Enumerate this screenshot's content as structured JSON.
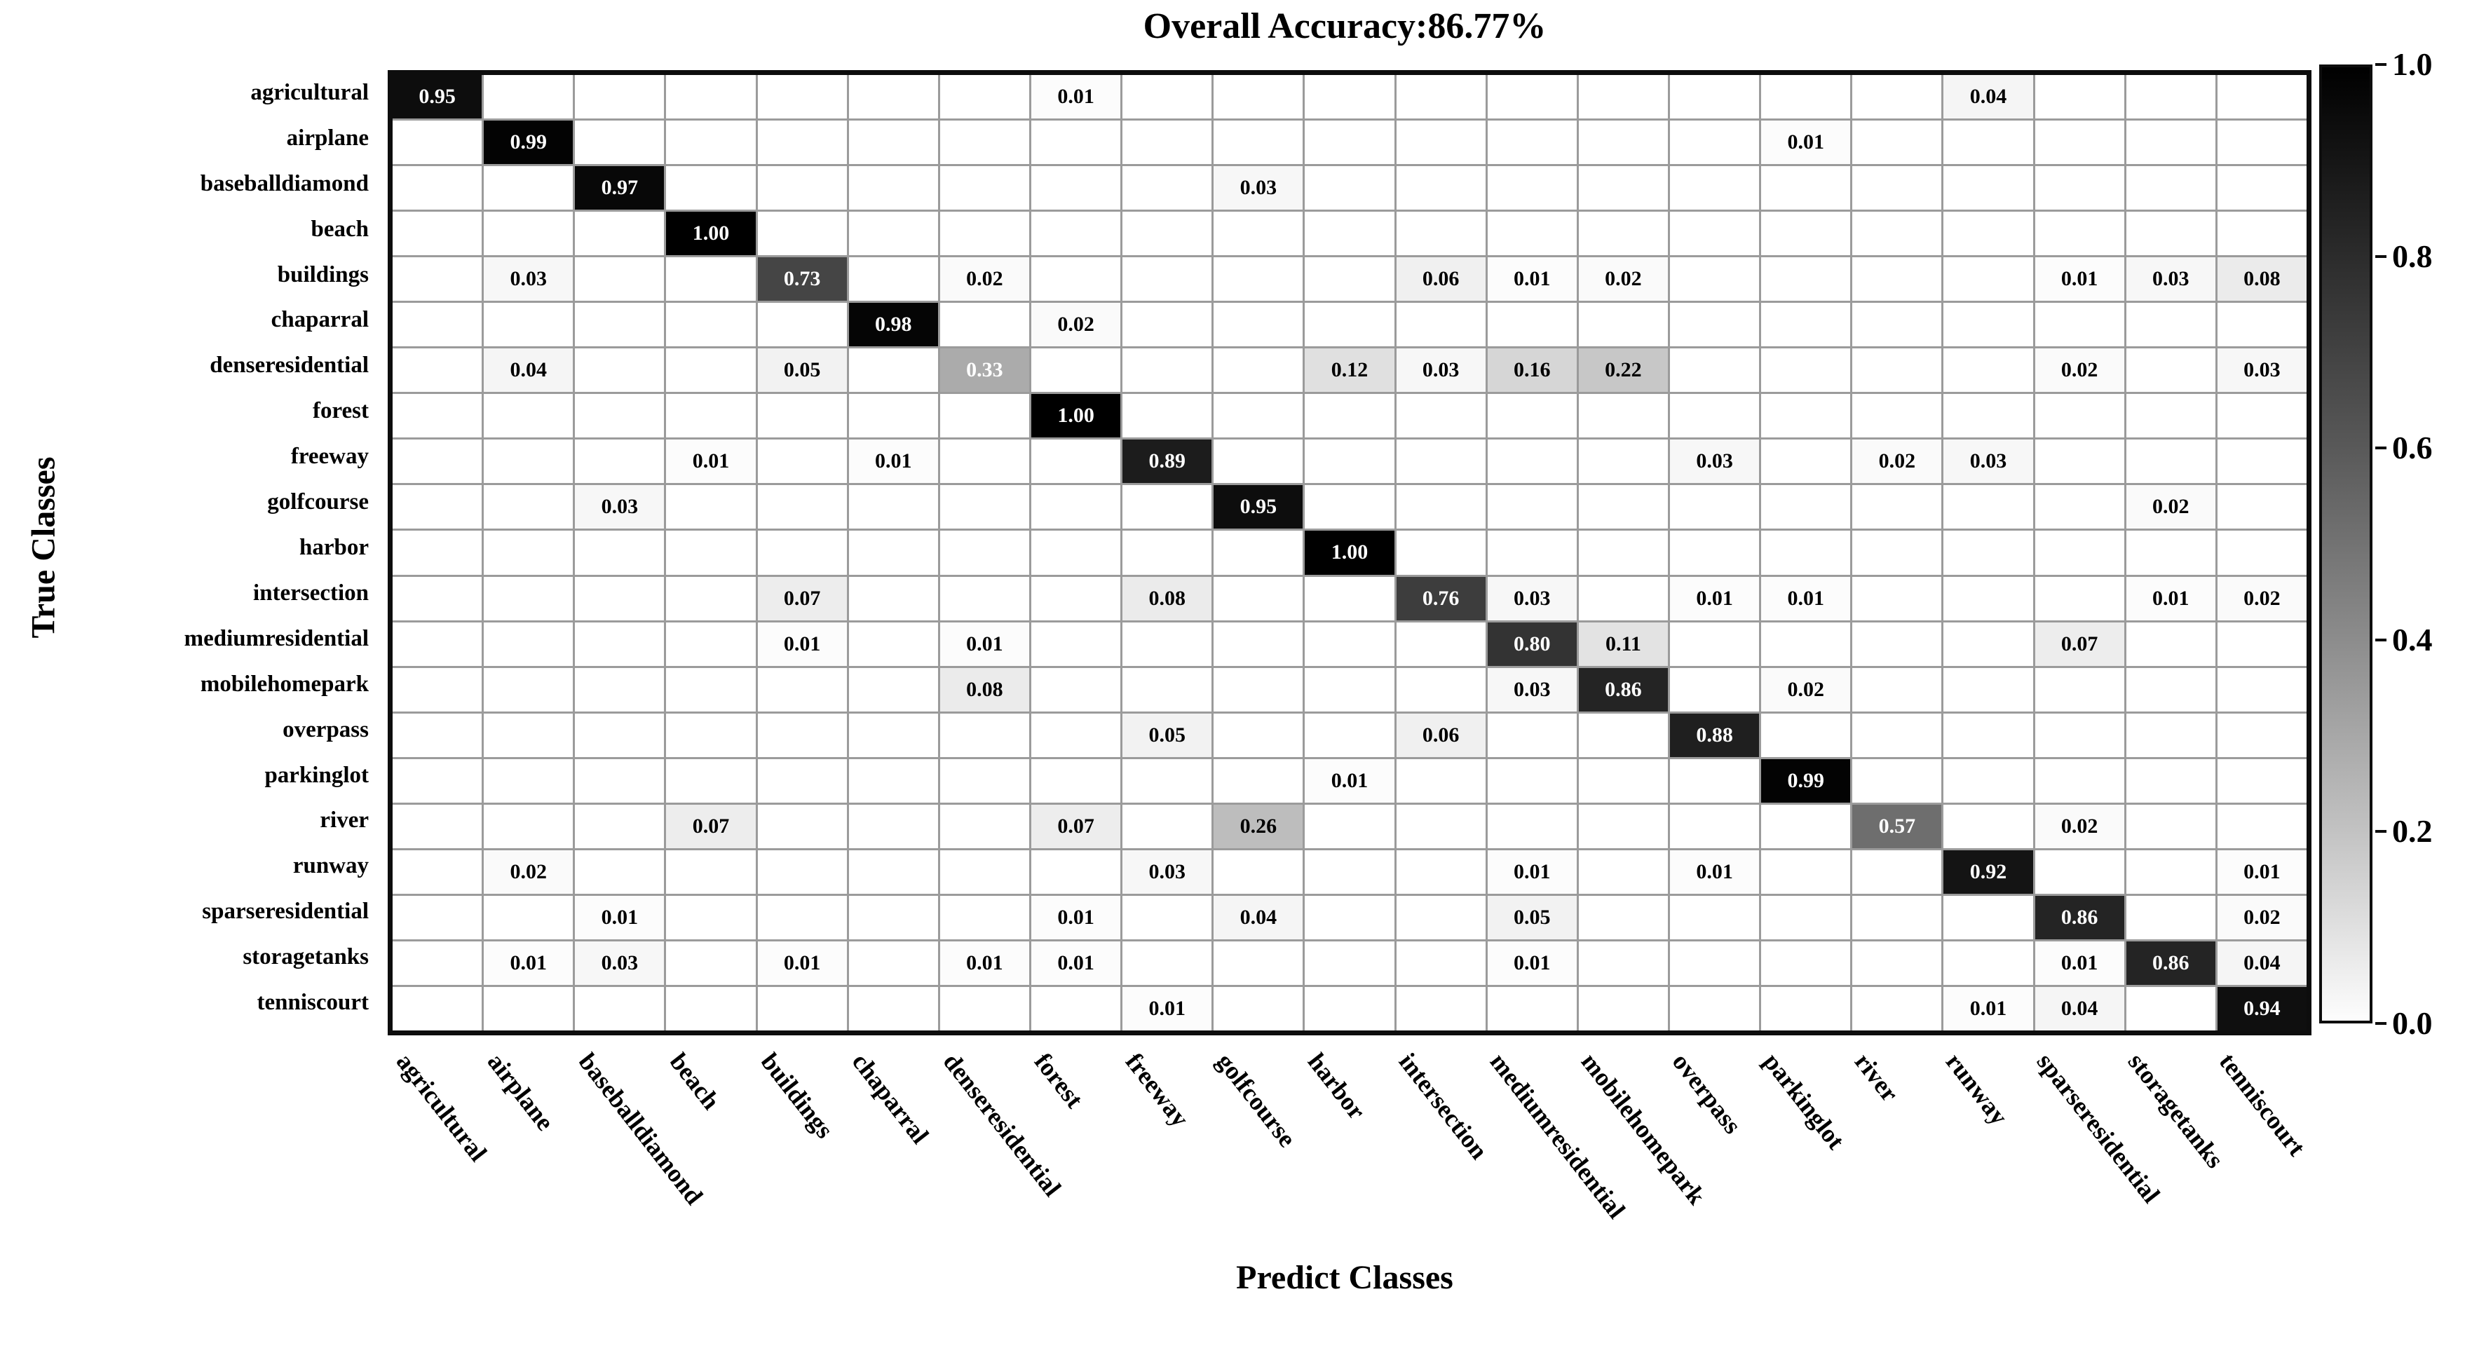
{
  "title": "Overall Accuracy:86.77%",
  "x_axis_title": "Predict Classes",
  "y_axis_title": "True Classes",
  "colorbar": {
    "tick_labels": [
      "1.0",
      "0.8",
      "0.6",
      "0.4",
      "0.2",
      "0.0"
    ],
    "top_value": 1.0,
    "bottom_value": 0.0,
    "color_high": "#000000",
    "color_low": "#ffffff"
  },
  "chart_data": {
    "type": "heatmap",
    "title": "Overall Accuracy:86.77%",
    "xlabel": "Predict Classes",
    "ylabel": "True Classes",
    "colormap": "grayscale reversed (0=white, 1=black)",
    "value_range": [
      0.0,
      1.0
    ],
    "legend_position": "right colorbar",
    "classes": [
      "agricultural",
      "airplane",
      "baseballdiamond",
      "beach",
      "buildings",
      "chaparral",
      "denseresidential",
      "forest",
      "freeway",
      "golfcourse",
      "harbor",
      "intersection",
      "mediumresidential",
      "mobilehomepark",
      "overpass",
      "parkinglot",
      "river",
      "runway",
      "sparseresidential",
      "storagetanks",
      "tenniscourt"
    ],
    "matrix": [
      [
        0.95,
        0,
        0,
        0,
        0,
        0,
        0,
        0.01,
        0,
        0,
        0,
        0,
        0,
        0,
        0,
        0,
        0,
        0.04,
        0,
        0,
        0
      ],
      [
        0,
        0.99,
        0,
        0,
        0,
        0,
        0,
        0,
        0,
        0,
        0,
        0,
        0,
        0,
        0,
        0.01,
        0,
        0,
        0,
        0,
        0
      ],
      [
        0,
        0,
        0.97,
        0,
        0,
        0,
        0,
        0,
        0,
        0.03,
        0,
        0,
        0,
        0,
        0,
        0,
        0,
        0,
        0,
        0,
        0
      ],
      [
        0,
        0,
        0,
        1.0,
        0,
        0,
        0,
        0,
        0,
        0,
        0,
        0,
        0,
        0,
        0,
        0,
        0,
        0,
        0,
        0,
        0
      ],
      [
        0,
        0.03,
        0,
        0,
        0.73,
        0,
        0.02,
        0,
        0,
        0,
        0,
        0.06,
        0.01,
        0.02,
        0,
        0,
        0,
        0,
        0.01,
        0.03,
        0.08
      ],
      [
        0,
        0,
        0,
        0,
        0,
        0.98,
        0,
        0.02,
        0,
        0,
        0,
        0,
        0,
        0,
        0,
        0,
        0,
        0,
        0,
        0,
        0
      ],
      [
        0,
        0.04,
        0,
        0,
        0.05,
        0,
        0.33,
        0,
        0,
        0,
        0.12,
        0.03,
        0.16,
        0.22,
        0,
        0,
        0,
        0,
        0.02,
        0,
        0.03
      ],
      [
        0,
        0,
        0,
        0,
        0,
        0,
        0,
        1.0,
        0,
        0,
        0,
        0,
        0,
        0,
        0,
        0,
        0,
        0,
        0,
        0,
        0
      ],
      [
        0,
        0,
        0,
        0.01,
        0,
        0.01,
        0,
        0,
        0.89,
        0,
        0,
        0,
        0,
        0,
        0.03,
        0,
        0.02,
        0.03,
        0,
        0,
        0
      ],
      [
        0,
        0,
        0.03,
        0,
        0,
        0,
        0,
        0,
        0,
        0.95,
        0,
        0,
        0,
        0,
        0,
        0,
        0,
        0,
        0,
        0.02,
        0
      ],
      [
        0,
        0,
        0,
        0,
        0,
        0,
        0,
        0,
        0,
        0,
        1.0,
        0,
        0,
        0,
        0,
        0,
        0,
        0,
        0,
        0,
        0
      ],
      [
        0,
        0,
        0,
        0,
        0.07,
        0,
        0,
        0,
        0.08,
        0,
        0,
        0.76,
        0.03,
        0,
        0.01,
        0.01,
        0,
        0,
        0,
        0.01,
        0.02
      ],
      [
        0,
        0,
        0,
        0,
        0.01,
        0,
        0.01,
        0,
        0,
        0,
        0,
        0,
        0.8,
        0.11,
        0,
        0,
        0,
        0,
        0.07,
        0,
        0
      ],
      [
        0,
        0,
        0,
        0,
        0,
        0,
        0.08,
        0,
        0,
        0,
        0,
        0,
        0.03,
        0.86,
        0,
        0.02,
        0,
        0,
        0,
        0,
        0
      ],
      [
        0,
        0,
        0,
        0,
        0,
        0,
        0,
        0,
        0.05,
        0,
        0,
        0.06,
        0,
        0,
        0.88,
        0,
        0,
        0,
        0,
        0,
        0
      ],
      [
        0,
        0,
        0,
        0,
        0,
        0,
        0,
        0,
        0,
        0,
        0.01,
        0,
        0,
        0,
        0,
        0.99,
        0,
        0,
        0,
        0,
        0
      ],
      [
        0,
        0,
        0,
        0.07,
        0,
        0,
        0,
        0.07,
        0,
        0.26,
        0,
        0,
        0,
        0,
        0,
        0,
        0.57,
        0,
        0.02,
        0,
        0
      ],
      [
        0,
        0.02,
        0,
        0,
        0,
        0,
        0,
        0,
        0.03,
        0,
        0,
        0,
        0.01,
        0,
        0.01,
        0,
        0,
        0.92,
        0,
        0,
        0.01
      ],
      [
        0,
        0,
        0.01,
        0,
        0,
        0,
        0,
        0.01,
        0,
        0.04,
        0,
        0,
        0.05,
        0,
        0,
        0,
        0,
        0,
        0.86,
        0,
        0.02
      ],
      [
        0,
        0.01,
        0.03,
        0,
        0.01,
        0,
        0.01,
        0.01,
        0,
        0,
        0,
        0,
        0.01,
        0,
        0,
        0,
        0,
        0,
        0.01,
        0.86,
        0.04
      ],
      [
        0,
        0,
        0,
        0,
        0,
        0,
        0,
        0,
        0.01,
        0,
        0,
        0,
        0,
        0,
        0,
        0,
        0,
        0.01,
        0.04,
        0,
        0.94
      ]
    ],
    "cell_text_rule": "values >= 0.3 rendered white, others black; zero cells blank"
  }
}
